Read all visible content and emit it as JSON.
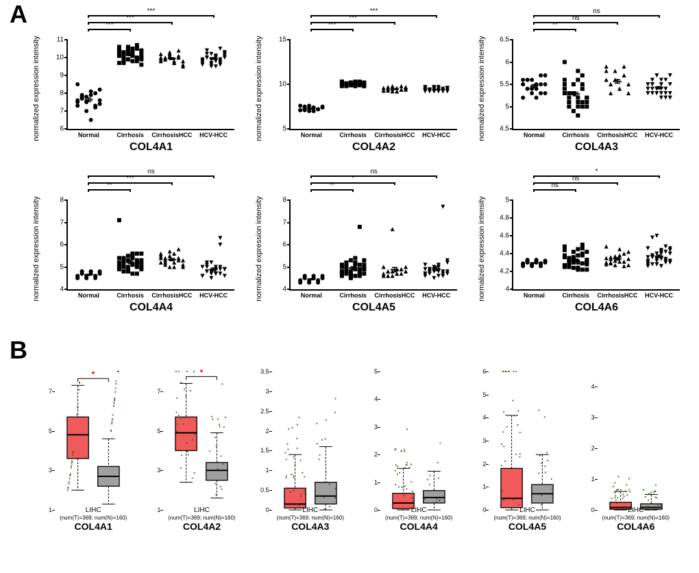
{
  "panel_labels": {
    "A": "A",
    "B": "B"
  },
  "panelA": {
    "ylabel": "normalized expression intensity",
    "x_categories": [
      "Normal",
      "Cirrhosis",
      "CirrhosisHCC",
      "HCV-HCC"
    ],
    "markers_by_group": [
      "circle",
      "square",
      "triangle",
      "down-triangle"
    ],
    "point_fill": "#000000",
    "axis_color": "#000000",
    "jitter": 0.08,
    "error_bar_color": "#000000",
    "charts": [
      {
        "title": "COL4A1",
        "ylim": [
          6,
          11
        ],
        "ytick_step": 1,
        "groups": [
          [
            7.6,
            7.8,
            7.5,
            7.9,
            8.0,
            7.4,
            7.3,
            7.7,
            7.8,
            8.1,
            7.2,
            7.6,
            8.5,
            7.9,
            7.0,
            6.5,
            7.3,
            8.2,
            7.5,
            7.8
          ],
          [
            10.1,
            10.2,
            9.9,
            10.3,
            10.0,
            10.4,
            10.1,
            9.8,
            10.5,
            10.2,
            10.0,
            10.3,
            10.4,
            9.7,
            10.6,
            10.1,
            10.7,
            9.9,
            10.3,
            10.0,
            10.2,
            10.5,
            9.8,
            10.1,
            10.6,
            10.3,
            9.9,
            10.2,
            10.0,
            9.6,
            10.4,
            10.1,
            10.3,
            9.8,
            10.5,
            10.0,
            9.7,
            10.2,
            10.4,
            10.1
          ],
          [
            9.8,
            9.9,
            10.1,
            9.7,
            10.0,
            9.6,
            10.2,
            9.9,
            10.3,
            9.8,
            10.1,
            9.5,
            9.9,
            10.0,
            10.2,
            9.7,
            10.4,
            9.8,
            10.0,
            9.9
          ],
          [
            9.8,
            10.0,
            9.7,
            10.1,
            9.6,
            10.3,
            9.9,
            10.2,
            9.5,
            9.8,
            10.5,
            10.0,
            9.7,
            10.4,
            9.9,
            10.1,
            9.8,
            10.2,
            9.6,
            10.0,
            9.9,
            10.1,
            9.7,
            10.3,
            9.8,
            10.0,
            10.2,
            9.5,
            9.9,
            10.1,
            9.8,
            10.4,
            9.6,
            10.0
          ]
        ],
        "sig": [
          "***",
          "***",
          "***"
        ]
      },
      {
        "title": "COL4A2",
        "ylim": [
          5,
          15
        ],
        "ytick_step": 5,
        "groups": [
          [
            7.1,
            7.3,
            7.0,
            7.4,
            7.2,
            7.5,
            7.1,
            7.3,
            7.6,
            7.0,
            7.2,
            7.4,
            7.1,
            7.5,
            7.3,
            7.0,
            7.2,
            7.4,
            7.6,
            7.1
          ],
          [
            9.9,
            10.0,
            10.1,
            9.8,
            10.2,
            10.0,
            10.3,
            9.9,
            10.1,
            10.0,
            10.2,
            9.8,
            10.0,
            10.1,
            9.9,
            10.3,
            10.0,
            9.8,
            10.2,
            10.1,
            9.9,
            10.0,
            10.3,
            10.1,
            9.8,
            10.0,
            10.2,
            9.9,
            10.1,
            10.0,
            10.3,
            9.8,
            10.0,
            10.1,
            9.9,
            10.2
          ],
          [
            9.3,
            9.5,
            9.2,
            9.6,
            9.4,
            9.7,
            9.3,
            9.5,
            9.8,
            9.2,
            9.4,
            9.6,
            9.3,
            9.7,
            9.5,
            9.2,
            9.8,
            9.4,
            9.6,
            9.3
          ],
          [
            9.3,
            9.4,
            9.2,
            9.5,
            9.3,
            9.6,
            9.2,
            9.4,
            9.7,
            9.3,
            9.5,
            9.2,
            9.6,
            9.4,
            9.3,
            9.7,
            9.2,
            9.5,
            9.4,
            9.3,
            9.6,
            9.2,
            9.5,
            9.3,
            9.7,
            9.4,
            9.2,
            9.5,
            9.3,
            9.6,
            9.4,
            9.2,
            9.5,
            9.3
          ]
        ],
        "sig": [
          "***",
          "***",
          "***"
        ]
      },
      {
        "title": "COL4A3",
        "ylim": [
          4.5,
          6.5
        ],
        "ytick_step": 0.5,
        "groups": [
          [
            5.5,
            5.6,
            5.3,
            5.4,
            5.7,
            5.5,
            5.2,
            5.6,
            5.4,
            5.5,
            5.3,
            5.7,
            5.5,
            5.4,
            5.6,
            5.2,
            5.5,
            5.3,
            5.6,
            5.4
          ],
          [
            5.3,
            5.2,
            5.5,
            5.0,
            5.4,
            5.1,
            5.6,
            5.3,
            4.9,
            5.2,
            5.7,
            5.0,
            5.4,
            5.1,
            5.3,
            5.8,
            5.0,
            5.2,
            5.5,
            5.1,
            5.3,
            4.8,
            5.4,
            5.2,
            6.0,
            5.0,
            5.3,
            5.1,
            5.5,
            5.2,
            5.4,
            5.0,
            5.3,
            5.6,
            5.1,
            5.2,
            5.4,
            5.3
          ],
          [
            5.6,
            5.5,
            5.8,
            5.4,
            5.7,
            5.3,
            5.9,
            5.5,
            5.6,
            5.4,
            5.7,
            5.3,
            5.8,
            5.5,
            5.6,
            5.4,
            5.9,
            5.5,
            5.6,
            5.3
          ],
          [
            5.4,
            5.5,
            5.3,
            5.6,
            5.4,
            5.2,
            5.5,
            5.3,
            5.7,
            5.4,
            5.2,
            5.5,
            5.3,
            5.6,
            5.4,
            5.5,
            5.3,
            5.2,
            5.4,
            5.6,
            5.3,
            5.5,
            5.4,
            5.7,
            5.3,
            5.5,
            5.4,
            5.2,
            5.6,
            5.3,
            5.5,
            5.4,
            5.7,
            5.3
          ]
        ],
        "sig": [
          "**",
          "ns",
          "ns"
        ]
      },
      {
        "title": "COL4A4",
        "ylim": [
          4,
          8
        ],
        "ytick_step": 1,
        "groups": [
          [
            4.6,
            4.7,
            4.5,
            4.8,
            4.6,
            4.7,
            4.5,
            4.8,
            4.6,
            4.7,
            4.5,
            4.8,
            4.6,
            4.7,
            4.5,
            4.8,
            4.6,
            4.7,
            4.5,
            4.8
          ],
          [
            5.0,
            5.2,
            4.8,
            5.4,
            5.1,
            5.6,
            4.9,
            5.3,
            5.0,
            5.5,
            4.7,
            5.2,
            5.1,
            5.4,
            4.8,
            5.6,
            5.0,
            5.3,
            7.1,
            5.1,
            4.9,
            5.5,
            5.2,
            5.0,
            5.4,
            4.8,
            5.3,
            5.1,
            5.6,
            4.9,
            5.2,
            5.0,
            5.5,
            4.7,
            5.3,
            5.1,
            5.4,
            5.0
          ],
          [
            5.2,
            5.4,
            5.0,
            5.6,
            5.3,
            5.1,
            5.5,
            5.2,
            5.7,
            5.0,
            5.4,
            5.3,
            5.6,
            5.1,
            5.5,
            5.2,
            5.8,
            5.0,
            5.4,
            5.3
          ],
          [
            4.6,
            4.8,
            4.5,
            5.0,
            4.7,
            4.9,
            4.6,
            5.2,
            4.8,
            4.7,
            6.0,
            4.9,
            4.6,
            5.0,
            4.8,
            4.7,
            6.3,
            4.9,
            4.6,
            5.1,
            4.8,
            4.7,
            5.0,
            4.9,
            4.6,
            4.8,
            5.2,
            4.7,
            4.9,
            4.6,
            5.0,
            4.8,
            4.7,
            4.9
          ]
        ],
        "sig": [
          "**",
          "***",
          "ns"
        ]
      },
      {
        "title": "COL4A5",
        "ylim": [
          4,
          8
        ],
        "ytick_step": 1,
        "groups": [
          [
            4.4,
            4.5,
            4.3,
            4.6,
            4.4,
            4.5,
            4.3,
            4.6,
            4.4,
            4.5,
            4.3,
            4.6,
            4.4,
            4.5,
            4.3,
            4.6,
            4.4,
            4.5,
            4.3,
            4.6
          ],
          [
            4.7,
            4.9,
            4.5,
            5.1,
            4.8,
            5.3,
            4.6,
            5.0,
            4.7,
            5.2,
            6.8,
            4.9,
            4.8,
            5.1,
            4.6,
            5.4,
            4.7,
            5.0,
            4.8,
            5.2,
            4.6,
            4.9,
            5.1,
            4.7,
            5.0,
            4.8,
            5.3,
            4.6,
            4.9,
            5.1,
            4.7,
            5.0,
            4.8,
            5.2,
            4.6,
            4.9,
            5.1,
            4.7
          ],
          [
            4.7,
            4.8,
            4.6,
            4.9,
            4.7,
            5.0,
            4.6,
            4.8,
            6.7,
            4.7,
            4.9,
            4.8,
            5.0,
            4.6,
            4.8,
            4.7,
            4.9,
            4.8,
            5.0,
            4.6
          ],
          [
            4.6,
            4.8,
            4.5,
            5.0,
            4.7,
            5.2,
            4.6,
            4.9,
            4.8,
            5.1,
            7.7,
            4.7,
            4.9,
            4.8,
            5.0,
            4.6,
            4.8,
            5.3,
            4.7,
            4.9,
            4.8,
            5.0,
            4.6,
            5.2,
            4.7,
            4.9,
            4.8,
            5.0,
            4.6,
            4.8,
            5.1,
            4.7,
            4.9,
            4.8
          ]
        ],
        "sig": [
          "**",
          "*",
          "ns"
        ]
      },
      {
        "title": "COL4A6",
        "ylim": [
          4.0,
          5.0
        ],
        "ytick_step": 0.2,
        "groups": [
          [
            4.28,
            4.3,
            4.26,
            4.32,
            4.29,
            4.31,
            4.27,
            4.33,
            4.28,
            4.3,
            4.26,
            4.32,
            4.29,
            4.31,
            4.27,
            4.33,
            4.28,
            4.3,
            4.26,
            4.32
          ],
          [
            4.27,
            4.32,
            4.24,
            4.38,
            4.29,
            4.42,
            4.25,
            4.35,
            4.3,
            4.45,
            4.22,
            4.33,
            4.48,
            4.28,
            4.36,
            4.24,
            4.5,
            4.3,
            4.38,
            4.26,
            4.32,
            4.22,
            4.4,
            4.28,
            4.44,
            4.25,
            4.34,
            4.3,
            4.46,
            4.22,
            4.36,
            4.28,
            4.42,
            4.24,
            4.38,
            4.3,
            4.26,
            4.32
          ],
          [
            4.3,
            4.34,
            4.27,
            4.38,
            4.31,
            4.42,
            4.28,
            4.36,
            4.32,
            4.45,
            4.26,
            4.34,
            4.48,
            4.29,
            4.37,
            4.31,
            4.4,
            4.27,
            4.35,
            4.3
          ],
          [
            4.32,
            4.36,
            4.28,
            4.4,
            4.34,
            4.44,
            4.3,
            4.38,
            4.6,
            4.26,
            4.42,
            4.32,
            4.46,
            4.28,
            4.4,
            4.34,
            4.48,
            4.3,
            4.36,
            4.58,
            4.28,
            4.42,
            4.32,
            4.46,
            4.26,
            4.38,
            4.34,
            4.44,
            4.3,
            4.4,
            4.28,
            4.36,
            4.32,
            4.42
          ]
        ],
        "sig": [
          "ns",
          "ns",
          "*"
        ]
      }
    ]
  },
  "panelB": {
    "caption_line1": "LIHC",
    "caption_line2": "(num(T)=369; num(N)=160)",
    "tumor_fill": "#f15a5a",
    "normal_fill": "#a0a0a0",
    "box_border": "#000000",
    "median_color": "#000000",
    "jitter_color": "#2e5c1a",
    "sig_star_color": "#ff0000",
    "charts": [
      {
        "title": "COL4A1",
        "ylim": [
          1,
          8
        ],
        "ytick_step": 2,
        "tumor": {
          "q1": 3.6,
          "med": 4.8,
          "q3": 5.7,
          "lo": 2.0,
          "hi": 7.3
        },
        "normal": {
          "q1": 2.2,
          "med": 2.7,
          "q3": 3.2,
          "lo": 1.3,
          "hi": 4.6
        },
        "sig": "*"
      },
      {
        "title": "COL4A2",
        "ylim": [
          1,
          8
        ],
        "ytick_step": 2,
        "tumor": {
          "q1": 4.0,
          "med": 4.9,
          "q3": 5.7,
          "lo": 2.4,
          "hi": 7.4
        },
        "normal": {
          "q1": 2.5,
          "med": 3.0,
          "q3": 3.4,
          "lo": 1.6,
          "hi": 4.9
        },
        "sig": "*"
      },
      {
        "title": "COL4A3",
        "ylim": [
          0,
          3.5
        ],
        "ytick_step": 0.5,
        "tumor": {
          "q1": 0.05,
          "med": 0.15,
          "q3": 0.55,
          "lo": 0.0,
          "hi": 1.4
        },
        "normal": {
          "q1": 0.15,
          "med": 0.35,
          "q3": 0.7,
          "lo": 0.0,
          "hi": 1.6
        },
        "sig": ""
      },
      {
        "title": "COL4A4",
        "ylim": [
          0,
          5
        ],
        "ytick_step": 1,
        "tumor": {
          "q1": 0.05,
          "med": 0.25,
          "q3": 0.6,
          "lo": 0.0,
          "hi": 1.5
        },
        "normal": {
          "q1": 0.25,
          "med": 0.45,
          "q3": 0.7,
          "lo": 0.0,
          "hi": 1.4
        },
        "sig": ""
      },
      {
        "title": "COL4A5",
        "ylim": [
          0,
          6
        ],
        "ytick_step": 1,
        "tumor": {
          "q1": 0.1,
          "med": 0.5,
          "q3": 1.8,
          "lo": 0.0,
          "hi": 4.1
        },
        "normal": {
          "q1": 0.3,
          "med": 0.7,
          "q3": 1.1,
          "lo": 0.0,
          "hi": 2.4
        },
        "sig": ""
      },
      {
        "title": "COL4A6",
        "ylim": [
          0,
          4.5
        ],
        "ytick_step": 1,
        "tumor": {
          "q1": 0.02,
          "med": 0.08,
          "q3": 0.25,
          "lo": 0.0,
          "hi": 0.6
        },
        "normal": {
          "q1": 0.02,
          "med": 0.08,
          "q3": 0.2,
          "lo": 0.0,
          "hi": 0.5
        },
        "sig": ""
      }
    ]
  }
}
